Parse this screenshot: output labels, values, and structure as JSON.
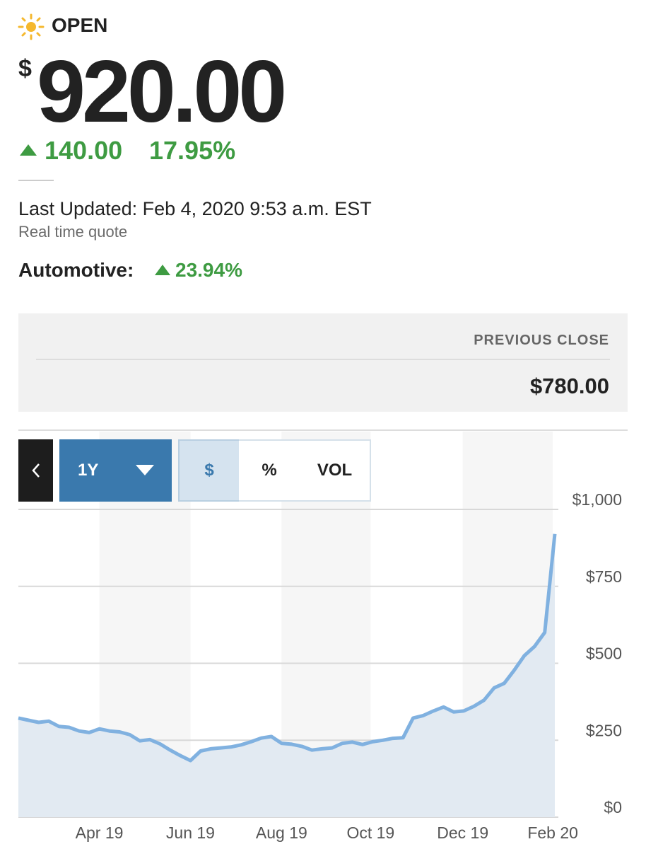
{
  "header": {
    "status": "OPEN",
    "currency_symbol": "$",
    "price": "920.00",
    "change": "140.00",
    "change_percent": "17.95%",
    "last_updated": "Last Updated: Feb 4, 2020 9:53 a.m. EST",
    "quote_type": "Real time quote",
    "sector_label": "Automotive:",
    "sector_change": "23.94%"
  },
  "previous_close": {
    "label": "PREVIOUS CLOSE",
    "value": "$780.00"
  },
  "controls": {
    "range": "1Y",
    "modes": [
      "$",
      "%",
      "VOL"
    ]
  },
  "chart_data": {
    "type": "area-line",
    "values": [
      322,
      315,
      308,
      312,
      295,
      292,
      280,
      275,
      287,
      280,
      277,
      268,
      248,
      252,
      238,
      218,
      200,
      184,
      215,
      222,
      225,
      228,
      235,
      245,
      257,
      262,
      240,
      237,
      230,
      218,
      222,
      225,
      240,
      244,
      236,
      245,
      250,
      256,
      258,
      322,
      330,
      345,
      358,
      342,
      345,
      360,
      380,
      420,
      435,
      478,
      525,
      555,
      600,
      920
    ],
    "color": "#80b1e0",
    "area_color": "#e2eaf2",
    "grid": true,
    "y_axis_side": "right",
    "xlim": [
      0,
      53
    ],
    "xticks": [
      {
        "value": 8,
        "label": "Apr 19"
      },
      {
        "value": 17,
        "label": "Jun 19"
      },
      {
        "value": 26,
        "label": "Aug 19"
      },
      {
        "value": 34.8,
        "label": "Oct 19"
      },
      {
        "value": 43.9,
        "label": "Dec 19"
      },
      {
        "value": 52.8,
        "label": "Feb 20"
      }
    ],
    "ylim": [
      0,
      1000
    ],
    "yticks": [
      {
        "value": 0,
        "label": "$0"
      },
      {
        "value": 250,
        "label": "$250"
      },
      {
        "value": 500,
        "label": "$500"
      },
      {
        "value": 750,
        "label": "$750"
      },
      {
        "value": 1000,
        "label": "$1,000"
      }
    ]
  }
}
